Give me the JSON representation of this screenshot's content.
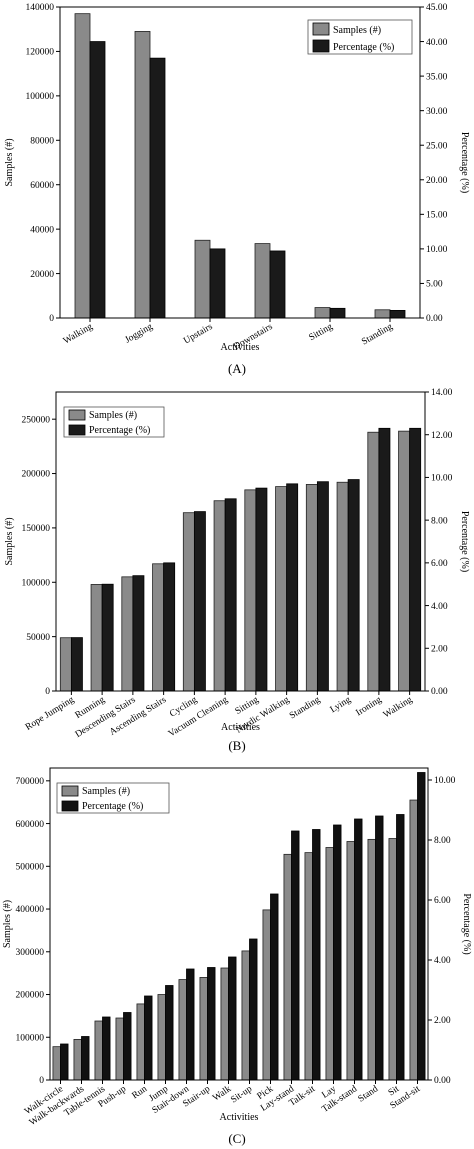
{
  "chart_data": [
    {
      "type": "bar",
      "caption": "(A)",
      "xlabel": "Activities",
      "ylabel": "Samples (#)",
      "y2label": "Percentage (%)",
      "ylim": [
        0,
        140000
      ],
      "y2lim": [
        0,
        45
      ],
      "yticks": [
        "0",
        "20000",
        "40000",
        "60000",
        "80000",
        "100000",
        "120000",
        "140000"
      ],
      "y2ticks": [
        "0.00",
        "5.00",
        "10.00",
        "15.00",
        "20.00",
        "25.00",
        "30.00",
        "35.00",
        "40.00",
        "45.00"
      ],
      "legend_position": "top-right",
      "categories": [
        "Walking",
        "Jogging",
        "Upstairs",
        "Downstairs",
        "Sitting",
        "Standing"
      ],
      "series": [
        {
          "name": "Samples (#)",
          "axis": "left",
          "values": [
            137000,
            129000,
            35000,
            33500,
            4700,
            3700
          ],
          "color": "#8a8a8a"
        },
        {
          "name": "Percentage (%)",
          "axis": "right",
          "values": [
            40.0,
            37.6,
            10.0,
            9.7,
            1.4,
            1.1
          ],
          "color": "#1a1a1a"
        }
      ]
    },
    {
      "type": "bar",
      "caption": "(B)",
      "xlabel": "Activities",
      "ylabel": "Samples (#)",
      "y2label": "Percentage (%)",
      "ylim": [
        0,
        275000
      ],
      "y2lim": [
        0,
        14
      ],
      "yticks": [
        "0",
        "50000",
        "100000",
        "150000",
        "200000",
        "250000"
      ],
      "y2ticks": [
        "0.00",
        "2.00",
        "4.00",
        "6.00",
        "8.00",
        "10.00",
        "12.00",
        "14.00"
      ],
      "legend_position": "top-left",
      "categories": [
        "Rope Jumping",
        "Running",
        "Descending Stairs",
        "Ascending Stairs",
        "Cycling",
        "Vacuum Cleaning",
        "Sitting",
        "Nordic Walking",
        "Standing",
        "Lying",
        "Ironing",
        "Walking"
      ],
      "series": [
        {
          "name": "Samples (#)",
          "axis": "left",
          "values": [
            49000,
            98000,
            105000,
            117000,
            164000,
            175000,
            185000,
            188000,
            190000,
            192000,
            238000,
            239000
          ],
          "color": "#8a8a8a"
        },
        {
          "name": "Percentage (%)",
          "axis": "right",
          "values": [
            2.5,
            5.0,
            5.4,
            6.0,
            8.4,
            9.0,
            9.5,
            9.7,
            9.8,
            9.9,
            12.3,
            12.3
          ],
          "color": "#1a1a1a"
        }
      ]
    },
    {
      "type": "bar",
      "caption": "(C)",
      "xlabel": "Activities",
      "ylabel": "Samples (#)",
      "y2label": "Percentage (%)",
      "ylim": [
        0,
        730000
      ],
      "y2lim": [
        0,
        10.4
      ],
      "yticks": [
        "0",
        "100000",
        "200000",
        "300000",
        "400000",
        "500000",
        "600000",
        "700000"
      ],
      "y2ticks": [
        "0.00",
        "2.00",
        "4.00",
        "6.00",
        "8.00",
        "10.00"
      ],
      "legend_position": "top-left",
      "categories": [
        "Walk-circle",
        "Walk-backwards",
        "Table-tennis",
        "Push-up",
        "Run",
        "Jump",
        "Stair-down",
        "Stair-up",
        "Walk",
        "Sit-up",
        "Pick",
        "Lay-stand",
        "Talk-sit",
        "Lay",
        "Talk-stand",
        "Stand",
        "Sit",
        "Stand-sit"
      ],
      "series": [
        {
          "name": "Samples (#)",
          "axis": "left",
          "values": [
            78000,
            95000,
            138000,
            145000,
            178000,
            200000,
            235000,
            240000,
            262000,
            302000,
            398000,
            528000,
            532000,
            544000,
            558000,
            563000,
            565000,
            655000
          ],
          "color": "#8a8a8a"
        },
        {
          "name": "Percentage (%)",
          "axis": "right",
          "values": [
            1.2,
            1.45,
            2.1,
            2.25,
            2.8,
            3.15,
            3.7,
            3.75,
            4.1,
            4.7,
            6.2,
            8.3,
            8.35,
            8.5,
            8.7,
            8.8,
            8.85,
            10.25
          ],
          "color": "#111111"
        }
      ]
    }
  ]
}
